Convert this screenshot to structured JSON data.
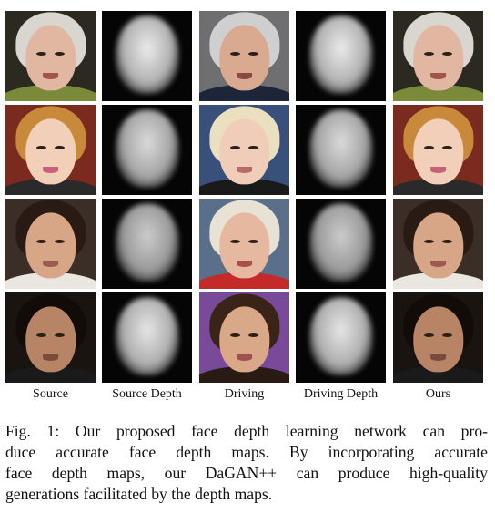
{
  "columns": [
    "Source",
    "Source Depth",
    "Driving",
    "Driving Depth",
    "Ours"
  ],
  "caption_lines": [
    "Fig. 1: Our proposed face depth learning network can pro-",
    "duce accurate face depth maps. By incorporating accurate",
    "face depth maps, our DaGAN++ can produce high-quality",
    "generations facilitated by the depth maps."
  ],
  "rows": [
    {
      "source": {
        "bg": "#2c2a20",
        "hair": "#d9d6cf",
        "skin": "#e2b7a2",
        "lip": "#a0544c",
        "cloth": "#7a8a3a"
      },
      "driving": {
        "bg": "#6f6f72",
        "hair": "#cfcfd0",
        "skin": "#d9aa90",
        "lip": "#8a4a44",
        "cloth": "#1c2638"
      }
    },
    {
      "source": {
        "bg": "#7a2a1e",
        "hair": "#c88a3a",
        "skin": "#f1cfb9",
        "lip": "#c8607a",
        "cloth": "#2a2a2a"
      },
      "driving": {
        "bg": "#38507a",
        "hair": "#eadfbf",
        "skin": "#f0cdb8",
        "lip": "#b86a6a",
        "cloth": "#1a1a1a"
      }
    },
    {
      "source": {
        "bg": "#3a2e26",
        "hair": "#2a1a14",
        "skin": "#d7a686",
        "lip": "#9c5a50",
        "cloth": "#eae6e0"
      },
      "driving": {
        "bg": "#5a6f8a",
        "hair": "#e8e2d4",
        "skin": "#e6b8a0",
        "lip": "#a85048",
        "cloth": "#c42a2a"
      }
    },
    {
      "source": {
        "bg": "#1a1410",
        "hair": "#120c08",
        "skin": "#b88466",
        "lip": "#7a4a3c",
        "cloth": "#1a1a1a"
      },
      "driving": {
        "bg": "#7a4a9a",
        "hair": "#3a2418",
        "skin": "#d9a888",
        "lip": "#a05050",
        "cloth": "#2a1a14"
      }
    }
  ]
}
